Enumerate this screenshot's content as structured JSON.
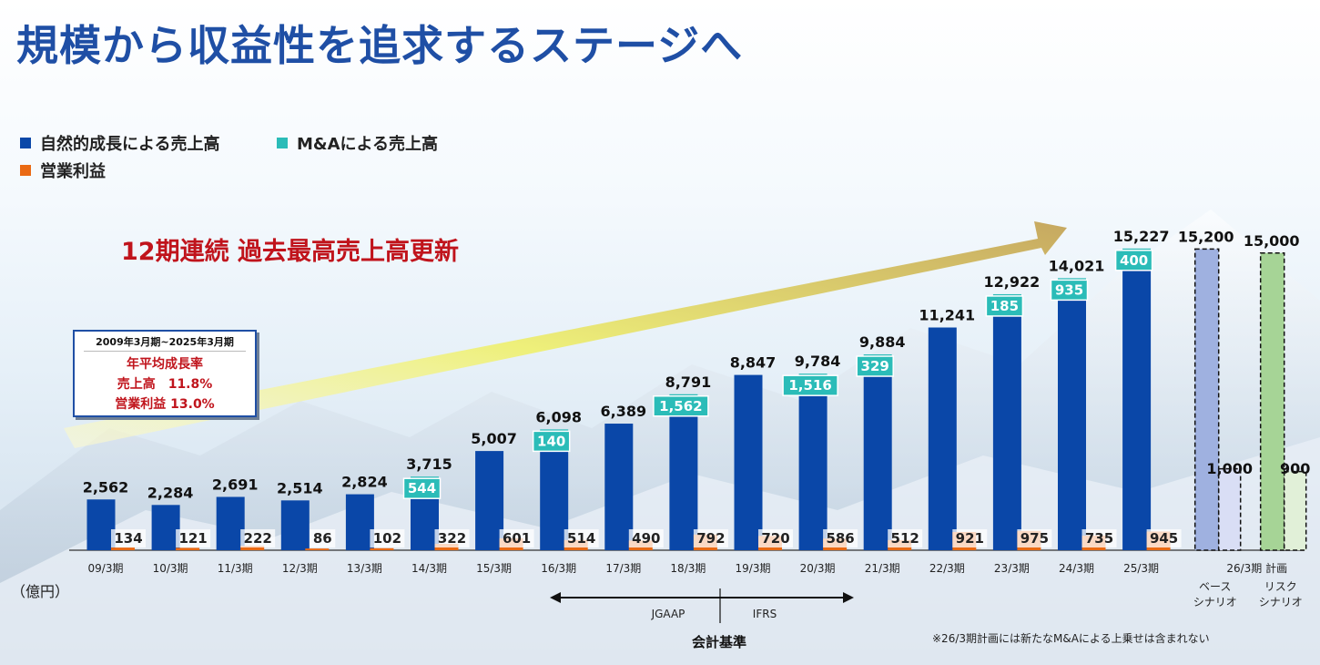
{
  "title": "規模から収益性を追求するステージへ",
  "legend": [
    {
      "label": "自然的成長による売上高",
      "color": "#0a47a8"
    },
    {
      "label": "M&Aによる売上高",
      "color": "#2bbcb8"
    },
    {
      "label": "営業利益",
      "color": "#ea6a14"
    }
  ],
  "headline": "12期連続 過去最高売上高更新",
  "cagr": {
    "period": "2009年3月期~2025年3月期",
    "title": "年平均成長率",
    "rows": [
      "売上高　11.8%",
      "営業利益 13.0%"
    ]
  },
  "unit": "（億円）",
  "footnote": "※26/3期計画には新たなM&Aによる上乗せは含まれない",
  "accounting": {
    "label": "会計基準",
    "left": "JGAAP",
    "right": "IFRS"
  },
  "chart_data": {
    "type": "bar",
    "categories": [
      "09/3期",
      "10/3期",
      "11/3期",
      "12/3期",
      "13/3期",
      "14/3期",
      "15/3期",
      "16/3期",
      "17/3期",
      "18/3期",
      "19/3期",
      "20/3期",
      "21/3期",
      "22/3期",
      "23/3期",
      "24/3期",
      "25/3期"
    ],
    "series": [
      {
        "name": "自然的成長による売上高",
        "values": [
          2562,
          2284,
          2691,
          2514,
          2824,
          3171,
          5007,
          5958,
          6389,
          7229,
          8847,
          8268,
          9555,
          11241,
          12737,
          13086,
          14827
        ]
      },
      {
        "name": "M&Aによる売上高",
        "values": [
          0,
          0,
          0,
          0,
          0,
          544,
          0,
          140,
          0,
          1562,
          0,
          1516,
          329,
          0,
          185,
          935,
          400
        ]
      },
      {
        "name": "営業利益",
        "values": [
          134,
          121,
          222,
          86,
          102,
          322,
          601,
          514,
          490,
          792,
          720,
          586,
          512,
          921,
          975,
          735,
          945
        ]
      }
    ],
    "total_labels": [
      "2,562",
      "2,284",
      "2,691",
      "2,514",
      "2,824",
      "3,715",
      "5,007",
      "6,098",
      "6,389",
      "8,791",
      "8,847",
      "9,784",
      "9,884",
      "11,241",
      "12,922",
      "14,021",
      "15,227"
    ],
    "ma_labels": [
      "",
      "",
      "",
      "",
      "",
      "544",
      "",
      "140",
      "",
      "1,562",
      "",
      "1,516",
      "329",
      "",
      "185",
      "935",
      "400"
    ],
    "op_labels": [
      "134",
      "121",
      "222",
      "86",
      "102",
      "322",
      "601",
      "514",
      "490",
      "792",
      "720",
      "586",
      "512",
      "921",
      "975",
      "735",
      "945"
    ],
    "plan": {
      "category": "26/3期 計画",
      "scenarios": [
        {
          "name": "ベース\nシナリオ",
          "sales": 15200,
          "sales_label": "15,200",
          "op": 1000,
          "op_label": "1,000",
          "sales_color": "#9fb1e0",
          "op_color": "#d9def5"
        },
        {
          "name": "リスク\nシナリオ",
          "sales": 15000,
          "sales_label": "15,000",
          "op": 900,
          "op_label": "900",
          "sales_color": "#a6d496",
          "op_color": "#e1f0d8"
        }
      ]
    },
    "ylim": [
      0,
      16000
    ]
  }
}
